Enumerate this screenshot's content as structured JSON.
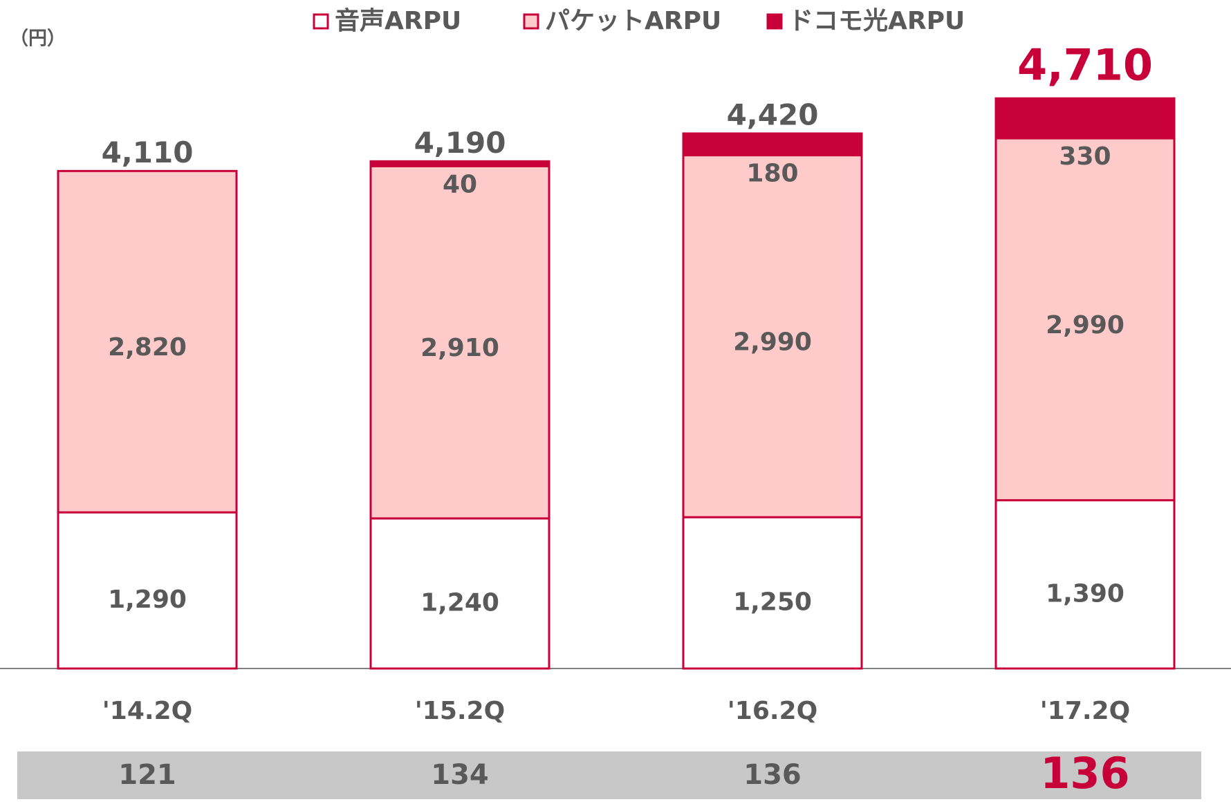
{
  "chart_data": {
    "type": "stacked-bar",
    "unit_label": "（円）",
    "categories": [
      "'14.2Q",
      "'15.2Q",
      "'16.2Q",
      "'17.2Q"
    ],
    "series": [
      {
        "name": "音声ARPU",
        "color": "#ffffff",
        "values": [
          1290,
          1240,
          1250,
          1390
        ],
        "value_labels": [
          "1,290",
          "1,240",
          "1,250",
          "1,390"
        ]
      },
      {
        "name": "パケットARPU",
        "color": "#ffcaca",
        "values": [
          2820,
          2910,
          2990,
          2990
        ],
        "value_labels": [
          "2,820",
          "2,910",
          "2,990",
          "2,990"
        ]
      },
      {
        "name": "ドコモ光ARPU",
        "color": "#c8003a",
        "values": [
          null,
          40,
          180,
          330
        ]
      }
    ],
    "totals": [
      4110,
      4190,
      4420,
      4710
    ],
    "total_labels": [
      "4,110",
      "4,190",
      "4,420",
      "4,710"
    ],
    "footer_values": [
      121,
      134,
      136,
      136
    ],
    "outline_color": "#c8003a"
  }
}
